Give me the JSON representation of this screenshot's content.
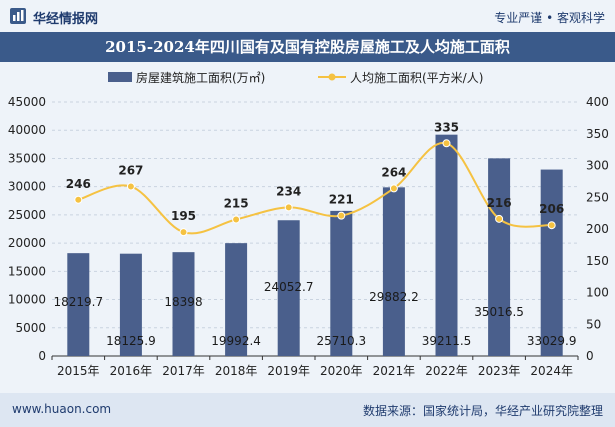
{
  "header": {
    "logo_text": "华经情报网",
    "slogan": "专业严谨 • 客观科学"
  },
  "footer": {
    "url": "www.huaon.com",
    "source": "数据来源：国家统计局，华经产业研究院整理"
  },
  "colors": {
    "bar": "#4a5f8c",
    "line": "#f5c242",
    "title_bg": "#3a5a8a"
  },
  "chart_data": {
    "type": "bar+line",
    "title": "2015-2024年四川国有及国有控股房屋施工及人均施工面积",
    "categories": [
      "2015年",
      "2016年",
      "2017年",
      "2018年",
      "2019年",
      "2020年",
      "2021年",
      "2022年",
      "2023年",
      "2024年"
    ],
    "series": [
      {
        "name": "房屋建筑施工面积(万㎡)",
        "type": "bar",
        "axis": "left",
        "values": [
          18219.7,
          18125.9,
          18398,
          19992.4,
          24052.7,
          25710.3,
          29882.2,
          39211.5,
          35016.5,
          33029.9
        ],
        "labels": [
          "18219.7",
          "18125.9",
          "18398",
          "19992.4",
          "24052.7",
          "25710.3",
          "29882.2",
          "39211.5",
          "35016.5",
          "33029.9"
        ]
      },
      {
        "name": "人均施工面积(平方米/人)",
        "type": "line",
        "axis": "right",
        "values": [
          246,
          267,
          195,
          215,
          234,
          221,
          264,
          335,
          216,
          206
        ],
        "labels": [
          "246",
          "267",
          "195",
          "215",
          "234",
          "221",
          "264",
          "335",
          "216",
          "206"
        ]
      }
    ],
    "left_axis": {
      "min": 0,
      "max": 45000,
      "ticks": [
        "0",
        "5000",
        "10000",
        "15000",
        "20000",
        "25000",
        "30000",
        "35000",
        "40000",
        "45000"
      ]
    },
    "right_axis": {
      "min": 0,
      "max": 400,
      "ticks": [
        "0",
        "50",
        "100",
        "150",
        "200",
        "250",
        "300",
        "350",
        "400"
      ]
    },
    "legend_position": "top"
  }
}
